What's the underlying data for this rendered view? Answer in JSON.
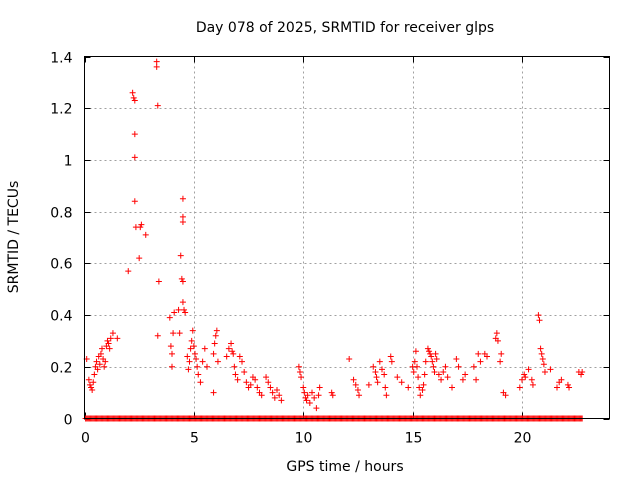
{
  "chart_data": {
    "type": "scatter",
    "title": "Day 078 of 2025, SRMTID for receiver glps",
    "xlabel": "GPS time / hours",
    "ylabel": "SRMTID / TECUs",
    "xlim": [
      0,
      24
    ],
    "ylim": [
      0,
      1.4
    ],
    "xticks": [
      0,
      5,
      10,
      15,
      20
    ],
    "xtick_labels": [
      "0",
      "5",
      "10",
      "15",
      "20"
    ],
    "yticks": [
      0,
      0.2,
      0.4,
      0.6,
      0.8,
      1.0,
      1.2,
      1.4
    ],
    "ytick_labels": [
      "0",
      "0.2",
      "0.4",
      "0.6",
      "0.8",
      "1",
      "1.2",
      "1.4"
    ],
    "grid": true,
    "marker": "+",
    "color": "#ff0000",
    "series": [
      {
        "name": "SRMTID",
        "points": [
          [
            0.1,
            0.23
          ],
          [
            0.2,
            0.15
          ],
          [
            0.25,
            0.13
          ],
          [
            0.3,
            0.12
          ],
          [
            0.35,
            0.11
          ],
          [
            0.4,
            0.14
          ],
          [
            0.45,
            0.17
          ],
          [
            0.5,
            0.2
          ],
          [
            0.55,
            0.22
          ],
          [
            0.6,
            0.19
          ],
          [
            0.65,
            0.24
          ],
          [
            0.7,
            0.21
          ],
          [
            0.75,
            0.25
          ],
          [
            0.8,
            0.27
          ],
          [
            0.85,
            0.23
          ],
          [
            0.9,
            0.2
          ],
          [
            0.95,
            0.22
          ],
          [
            1.0,
            0.28
          ],
          [
            1.05,
            0.3
          ],
          [
            1.1,
            0.29
          ],
          [
            1.15,
            0.27
          ],
          [
            1.2,
            0.31
          ],
          [
            1.3,
            0.33
          ],
          [
            1.5,
            0.31
          ],
          [
            2.0,
            0.57
          ],
          [
            2.2,
            1.26
          ],
          [
            2.25,
            1.24
          ],
          [
            2.3,
            1.23
          ],
          [
            2.3,
            1.1
          ],
          [
            2.3,
            1.01
          ],
          [
            2.3,
            0.84
          ],
          [
            2.35,
            0.74
          ],
          [
            2.5,
            0.62
          ],
          [
            2.6,
            0.75
          ],
          [
            2.55,
            0.74
          ],
          [
            2.8,
            0.71
          ],
          [
            3.3,
            1.36
          ],
          [
            3.3,
            1.38
          ],
          [
            3.35,
            1.21
          ],
          [
            3.4,
            0.53
          ],
          [
            3.35,
            0.32
          ],
          [
            3.9,
            0.39
          ],
          [
            3.95,
            0.28
          ],
          [
            4.0,
            0.25
          ],
          [
            4.0,
            0.2
          ],
          [
            4.05,
            0.33
          ],
          [
            4.1,
            0.41
          ],
          [
            4.3,
            0.42
          ],
          [
            4.35,
            0.33
          ],
          [
            4.4,
            0.63
          ],
          [
            4.45,
            0.54
          ],
          [
            4.5,
            0.85
          ],
          [
            4.5,
            0.78
          ],
          [
            4.5,
            0.76
          ],
          [
            4.5,
            0.53
          ],
          [
            4.5,
            0.45
          ],
          [
            4.55,
            0.42
          ],
          [
            4.6,
            0.41
          ],
          [
            4.7,
            0.24
          ],
          [
            4.75,
            0.19
          ],
          [
            4.8,
            0.22
          ],
          [
            4.85,
            0.27
          ],
          [
            4.9,
            0.3
          ],
          [
            4.95,
            0.34
          ],
          [
            5.0,
            0.28
          ],
          [
            5.05,
            0.25
          ],
          [
            5.1,
            0.23
          ],
          [
            5.15,
            0.2
          ],
          [
            5.2,
            0.17
          ],
          [
            5.3,
            0.14
          ],
          [
            5.4,
            0.22
          ],
          [
            5.5,
            0.27
          ],
          [
            5.6,
            0.2
          ],
          [
            5.9,
            0.1
          ],
          [
            5.9,
            0.25
          ],
          [
            5.95,
            0.29
          ],
          [
            6.0,
            0.32
          ],
          [
            6.05,
            0.34
          ],
          [
            6.1,
            0.22
          ],
          [
            6.5,
            0.24
          ],
          [
            6.6,
            0.27
          ],
          [
            6.7,
            0.29
          ],
          [
            6.75,
            0.26
          ],
          [
            6.8,
            0.25
          ],
          [
            6.85,
            0.2
          ],
          [
            6.9,
            0.17
          ],
          [
            7.0,
            0.15
          ],
          [
            7.1,
            0.24
          ],
          [
            7.2,
            0.22
          ],
          [
            7.3,
            0.18
          ],
          [
            7.4,
            0.14
          ],
          [
            7.5,
            0.12
          ],
          [
            7.6,
            0.13
          ],
          [
            7.7,
            0.16
          ],
          [
            7.8,
            0.15
          ],
          [
            7.9,
            0.12
          ],
          [
            8.0,
            0.1
          ],
          [
            8.1,
            0.09
          ],
          [
            8.3,
            0.16
          ],
          [
            8.4,
            0.14
          ],
          [
            8.5,
            0.12
          ],
          [
            8.6,
            0.1
          ],
          [
            8.7,
            0.08
          ],
          [
            8.8,
            0.11
          ],
          [
            8.9,
            0.09
          ],
          [
            9.0,
            0.07
          ],
          [
            9.8,
            0.2
          ],
          [
            9.85,
            0.18
          ],
          [
            9.9,
            0.16
          ],
          [
            10.0,
            0.12
          ],
          [
            10.05,
            0.1
          ],
          [
            10.1,
            0.08
          ],
          [
            10.15,
            0.07
          ],
          [
            10.2,
            0.09
          ],
          [
            10.3,
            0.06
          ],
          [
            10.4,
            0.1
          ],
          [
            10.5,
            0.08
          ],
          [
            10.6,
            0.04
          ],
          [
            10.7,
            0.09
          ],
          [
            10.75,
            0.12
          ],
          [
            11.3,
            0.1
          ],
          [
            11.35,
            0.09
          ],
          [
            12.1,
            0.23
          ],
          [
            12.3,
            0.15
          ],
          [
            12.4,
            0.13
          ],
          [
            12.5,
            0.11
          ],
          [
            12.55,
            0.09
          ],
          [
            13.0,
            0.13
          ],
          [
            13.2,
            0.2
          ],
          [
            13.3,
            0.18
          ],
          [
            13.35,
            0.16
          ],
          [
            13.4,
            0.14
          ],
          [
            13.5,
            0.22
          ],
          [
            13.6,
            0.19
          ],
          [
            13.7,
            0.17
          ],
          [
            13.75,
            0.12
          ],
          [
            13.8,
            0.09
          ],
          [
            14.0,
            0.24
          ],
          [
            14.05,
            0.22
          ],
          [
            14.3,
            0.16
          ],
          [
            14.5,
            0.14
          ],
          [
            14.8,
            0.12
          ],
          [
            15.0,
            0.2
          ],
          [
            15.05,
            0.18
          ],
          [
            15.1,
            0.22
          ],
          [
            15.15,
            0.26
          ],
          [
            15.2,
            0.2
          ],
          [
            15.25,
            0.16
          ],
          [
            15.3,
            0.12
          ],
          [
            15.35,
            0.09
          ],
          [
            15.45,
            0.11
          ],
          [
            15.5,
            0.13
          ],
          [
            15.55,
            0.17
          ],
          [
            15.6,
            0.22
          ],
          [
            15.7,
            0.27
          ],
          [
            15.75,
            0.26
          ],
          [
            15.8,
            0.25
          ],
          [
            15.85,
            0.24
          ],
          [
            15.9,
            0.22
          ],
          [
            15.95,
            0.2
          ],
          [
            16.0,
            0.18
          ],
          [
            16.05,
            0.25
          ],
          [
            16.1,
            0.23
          ],
          [
            16.2,
            0.17
          ],
          [
            16.3,
            0.15
          ],
          [
            16.4,
            0.18
          ],
          [
            16.5,
            0.2
          ],
          [
            16.6,
            0.16
          ],
          [
            16.8,
            0.12
          ],
          [
            17.0,
            0.23
          ],
          [
            17.1,
            0.2
          ],
          [
            17.3,
            0.15
          ],
          [
            17.4,
            0.17
          ],
          [
            17.8,
            0.2
          ],
          [
            17.9,
            0.15
          ],
          [
            18.0,
            0.25
          ],
          [
            18.1,
            0.22
          ],
          [
            18.3,
            0.25
          ],
          [
            18.4,
            0.24
          ],
          [
            18.8,
            0.31
          ],
          [
            18.85,
            0.33
          ],
          [
            18.9,
            0.3
          ],
          [
            19.0,
            0.22
          ],
          [
            19.05,
            0.25
          ],
          [
            19.15,
            0.1
          ],
          [
            19.25,
            0.09
          ],
          [
            19.9,
            0.12
          ],
          [
            20.0,
            0.15
          ],
          [
            20.1,
            0.17
          ],
          [
            20.15,
            0.16
          ],
          [
            20.3,
            0.19
          ],
          [
            20.45,
            0.15
          ],
          [
            20.5,
            0.13
          ],
          [
            20.75,
            0.4
          ],
          [
            20.8,
            0.38
          ],
          [
            20.85,
            0.27
          ],
          [
            20.9,
            0.25
          ],
          [
            20.95,
            0.23
          ],
          [
            21.0,
            0.21
          ],
          [
            21.05,
            0.18
          ],
          [
            21.3,
            0.19
          ],
          [
            21.6,
            0.12
          ],
          [
            21.7,
            0.14
          ],
          [
            21.8,
            0.15
          ],
          [
            22.1,
            0.13
          ],
          [
            22.15,
            0.12
          ],
          [
            22.6,
            0.18
          ],
          [
            22.7,
            0.17
          ],
          [
            22.75,
            0.18
          ]
        ],
        "zero_band_start": 0.05,
        "zero_band_end": 22.75,
        "zero_band_step": 0.05,
        "zero_band_value": 0
      }
    ]
  }
}
